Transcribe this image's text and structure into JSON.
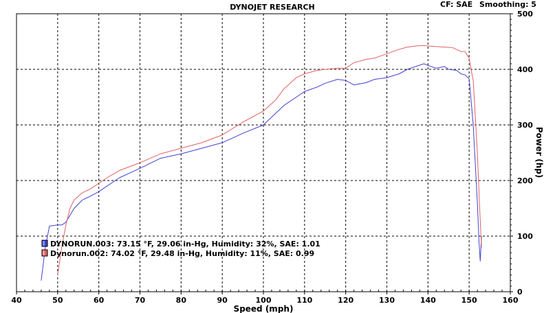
{
  "chart_data": {
    "type": "line",
    "title": "DYNOJET RESEARCH",
    "info": {
      "cf_label": "CF: SAE",
      "smoothing_label": "Smoothing: 5"
    },
    "xlabel": "Speed (mph)",
    "ylabel": "Power (hp)",
    "xlim": [
      40,
      160
    ],
    "ylim": [
      0,
      500
    ],
    "x_ticks": [
      40,
      50,
      60,
      70,
      80,
      90,
      100,
      110,
      120,
      130,
      140,
      150,
      160
    ],
    "y_ticks": [
      0,
      100,
      200,
      300,
      400,
      500
    ],
    "grid": true,
    "legend_position": "bottom-left",
    "series": [
      {
        "name": "DYNORUN.003: 73.15 °F, 29.06 in-Hg, Humidity: 32%, SAE: 1.01",
        "color": "#4040d0",
        "x": [
          46,
          47,
          48,
          50,
          51,
          52,
          54,
          56,
          58,
          60,
          62,
          65,
          70,
          75,
          80,
          85,
          90,
          95,
          100,
          105,
          108,
          110,
          113,
          115,
          118,
          120,
          122,
          125,
          127,
          130,
          133,
          135,
          137,
          139,
          140,
          142,
          144,
          145,
          147,
          148,
          149,
          150,
          151,
          152,
          152.4,
          152.7,
          153
        ],
        "y": [
          20,
          80,
          118,
          120,
          120,
          125,
          150,
          165,
          172,
          180,
          190,
          205,
          222,
          240,
          248,
          258,
          268,
          285,
          300,
          335,
          350,
          360,
          368,
          375,
          382,
          380,
          372,
          376,
          382,
          385,
          392,
          400,
          405,
          410,
          407,
          402,
          405,
          400,
          398,
          392,
          390,
          383,
          300,
          160,
          90,
          55,
          100
        ]
      },
      {
        "name": "Dynorun.002: 74.02 °F, 29.48 in-Hg, Humidity: 11%, SAE: 0.99",
        "color": "#e06060",
        "x": [
          50,
          51,
          52,
          53,
          54,
          56,
          58,
          60,
          62,
          65,
          70,
          75,
          80,
          85,
          90,
          95,
          100,
          103,
          105,
          108,
          110,
          113,
          115,
          118,
          120,
          122,
          125,
          127,
          130,
          133,
          135,
          137,
          139,
          140,
          142,
          144,
          146,
          148,
          149,
          150,
          150.5,
          151,
          152,
          152.5,
          153
        ],
        "y": [
          30,
          80,
          120,
          150,
          165,
          178,
          185,
          195,
          205,
          218,
          232,
          248,
          258,
          268,
          282,
          305,
          325,
          345,
          365,
          385,
          392,
          398,
          400,
          402,
          402,
          412,
          418,
          420,
          428,
          436,
          440,
          442,
          443,
          442,
          441,
          440,
          439,
          432,
          432,
          420,
          398,
          380,
          250,
          160,
          80
        ]
      }
    ]
  }
}
